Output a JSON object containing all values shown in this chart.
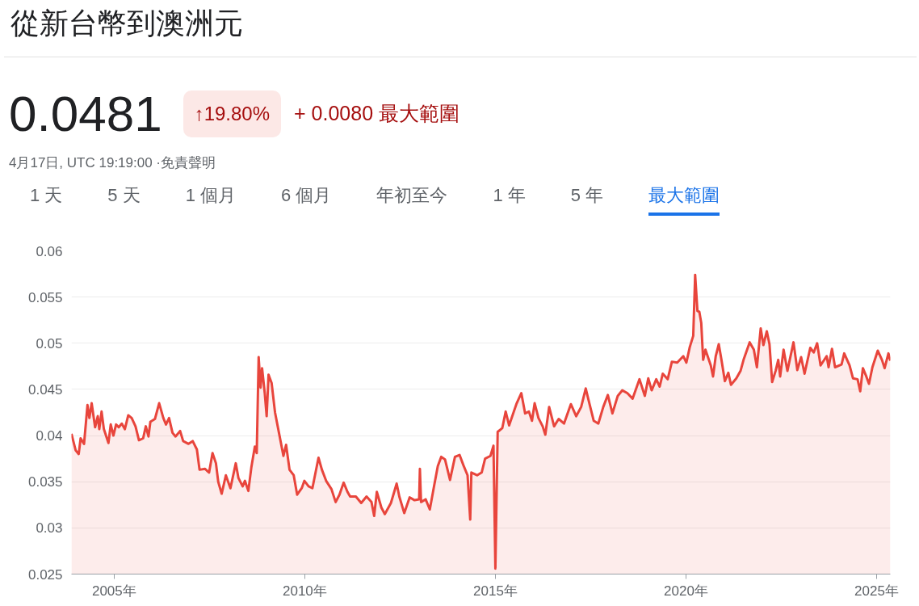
{
  "chart_data": {
    "type": "area",
    "title": "從新台幣到澳洲元",
    "annotations": [
      "0.0481",
      "↑19.80%",
      "+ 0.0080 最大範圍",
      "4月17日, UTC 19:19:00 ·免責聲明",
      "1 天",
      "5 天",
      "1 個月",
      "6 個月",
      "年初至今",
      "1 年",
      "5 年",
      "最大範圍"
    ],
    "x": [
      2003.88,
      2003.99,
      2004.07,
      2004.12,
      2004.21,
      2004.3,
      2004.35,
      2004.41,
      2004.5,
      2004.57,
      2004.61,
      2004.67,
      2004.73,
      2004.85,
      2004.91,
      2004.98,
      2005.05,
      2005.12,
      2005.2,
      2005.28,
      2005.37,
      2005.46,
      2005.56,
      2005.65,
      2005.76,
      2005.83,
      2005.9,
      2005.95,
      2006.07,
      2006.18,
      2006.29,
      2006.36,
      2006.44,
      2006.53,
      2006.61,
      2006.73,
      2006.81,
      2006.95,
      2007.06,
      2007.17,
      2007.24,
      2007.38,
      2007.49,
      2007.58,
      2007.67,
      2007.73,
      2007.82,
      2007.93,
      2008.05,
      2008.19,
      2008.26,
      2008.37,
      2008.43,
      2008.52,
      2008.6,
      2008.69,
      2008.74,
      2008.79,
      2008.84,
      2008.88,
      2008.95,
      2009.0,
      2009.05,
      2009.13,
      2009.22,
      2009.29,
      2009.44,
      2009.51,
      2009.6,
      2009.71,
      2009.8,
      2009.92,
      2009.99,
      2010.1,
      2010.2,
      2010.36,
      2010.45,
      2010.56,
      2010.7,
      2010.81,
      2010.91,
      2011.02,
      2011.12,
      2011.19,
      2011.34,
      2011.48,
      2011.62,
      2011.75,
      2011.82,
      2011.89,
      2012.01,
      2012.1,
      2012.26,
      2012.41,
      2012.48,
      2012.61,
      2012.75,
      2012.88,
      2013.0,
      2013.02,
      2013.05,
      2013.17,
      2013.28,
      2013.39,
      2013.49,
      2013.58,
      2013.68,
      2013.81,
      2013.94,
      2014.06,
      2014.16,
      2014.27,
      2014.34,
      2014.37,
      2014.52,
      2014.64,
      2014.73,
      2014.87,
      2014.95,
      2015.0,
      2015.06,
      2015.18,
      2015.27,
      2015.36,
      2015.55,
      2015.68,
      2015.78,
      2015.88,
      2015.96,
      2016.03,
      2016.13,
      2016.24,
      2016.31,
      2016.41,
      2016.54,
      2016.66,
      2016.8,
      2016.98,
      2017.12,
      2017.25,
      2017.37,
      2017.47,
      2017.58,
      2017.7,
      2017.83,
      2017.95,
      2018.07,
      2018.21,
      2018.33,
      2018.46,
      2018.6,
      2018.78,
      2018.92,
      2019.01,
      2019.1,
      2019.22,
      2019.31,
      2019.39,
      2019.52,
      2019.63,
      2019.77,
      2019.93,
      2020.01,
      2020.1,
      2020.19,
      2020.24,
      2020.3,
      2020.35,
      2020.4,
      2020.45,
      2020.51,
      2020.65,
      2020.71,
      2020.78,
      2020.86,
      2020.93,
      2021.02,
      2021.11,
      2021.18,
      2021.32,
      2021.43,
      2021.51,
      2021.67,
      2021.78,
      2021.86,
      2021.96,
      2022.03,
      2022.12,
      2022.19,
      2022.26,
      2022.35,
      2022.42,
      2022.47,
      2022.56,
      2022.66,
      2022.82,
      2022.92,
      2023.02,
      2023.11,
      2023.26,
      2023.35,
      2023.44,
      2023.53,
      2023.69,
      2023.74,
      2023.83,
      2023.91,
      2024.08,
      2024.15,
      2024.29,
      2024.38,
      2024.5,
      2024.57,
      2024.64,
      2024.73,
      2024.8,
      2024.89,
      2025.03,
      2025.14,
      2025.21,
      2025.31,
      2025.36
    ],
    "series": [
      {
        "color": "#e8453c",
        "values": [
          0.0402,
          0.0384,
          0.038,
          0.0397,
          0.0391,
          0.0433,
          0.0419,
          0.0435,
          0.0409,
          0.0421,
          0.0407,
          0.0426,
          0.0407,
          0.0392,
          0.0412,
          0.04,
          0.0412,
          0.0409,
          0.0413,
          0.0407,
          0.0422,
          0.0419,
          0.041,
          0.0395,
          0.0397,
          0.041,
          0.0399,
          0.0415,
          0.0418,
          0.0435,
          0.0419,
          0.0412,
          0.0419,
          0.0403,
          0.0399,
          0.0405,
          0.0394,
          0.0391,
          0.0394,
          0.0385,
          0.0363,
          0.0364,
          0.036,
          0.0381,
          0.037,
          0.035,
          0.0337,
          0.0357,
          0.0343,
          0.037,
          0.0354,
          0.0345,
          0.0351,
          0.034,
          0.0366,
          0.0388,
          0.0381,
          0.0485,
          0.0452,
          0.0473,
          0.0446,
          0.0421,
          0.0466,
          0.0457,
          0.0425,
          0.041,
          0.0378,
          0.039,
          0.0363,
          0.0357,
          0.0336,
          0.0343,
          0.0351,
          0.0345,
          0.0343,
          0.0376,
          0.0363,
          0.0351,
          0.0342,
          0.0328,
          0.0336,
          0.0349,
          0.0339,
          0.0334,
          0.0334,
          0.0327,
          0.0334,
          0.0328,
          0.0313,
          0.0339,
          0.0322,
          0.0315,
          0.0327,
          0.0348,
          0.0334,
          0.0316,
          0.0333,
          0.033,
          0.0331,
          0.0364,
          0.0328,
          0.0331,
          0.032,
          0.0345,
          0.0367,
          0.0377,
          0.0374,
          0.0352,
          0.0377,
          0.0379,
          0.0368,
          0.0357,
          0.0309,
          0.036,
          0.0357,
          0.036,
          0.0375,
          0.0378,
          0.0389,
          0.0256,
          0.0404,
          0.0408,
          0.0426,
          0.0411,
          0.0434,
          0.0446,
          0.0424,
          0.0426,
          0.0416,
          0.0435,
          0.0419,
          0.041,
          0.0401,
          0.0431,
          0.041,
          0.0418,
          0.0413,
          0.0434,
          0.0421,
          0.0431,
          0.0451,
          0.0434,
          0.0416,
          0.0413,
          0.0431,
          0.0444,
          0.0424,
          0.0443,
          0.0449,
          0.0446,
          0.044,
          0.0461,
          0.0443,
          0.0462,
          0.0449,
          0.0461,
          0.0453,
          0.0467,
          0.0461,
          0.048,
          0.0479,
          0.0486,
          0.0479,
          0.0496,
          0.0508,
          0.0574,
          0.0535,
          0.0534,
          0.0522,
          0.0482,
          0.0493,
          0.0476,
          0.0464,
          0.0486,
          0.0499,
          0.0482,
          0.0459,
          0.0468,
          0.0455,
          0.0462,
          0.047,
          0.0482,
          0.0501,
          0.0493,
          0.0474,
          0.0516,
          0.0498,
          0.0513,
          0.0499,
          0.0458,
          0.047,
          0.0482,
          0.0464,
          0.0493,
          0.047,
          0.0501,
          0.0471,
          0.0485,
          0.0467,
          0.0495,
          0.049,
          0.05,
          0.0476,
          0.0486,
          0.0474,
          0.0494,
          0.0474,
          0.0477,
          0.0489,
          0.0476,
          0.0462,
          0.0461,
          0.0448,
          0.0473,
          0.0464,
          0.0456,
          0.0474,
          0.0492,
          0.0482,
          0.0473,
          0.0489,
          0.0481
        ]
      }
    ],
    "xlim": [
      2003.88,
      2025.36
    ],
    "ylim": [
      0.025,
      0.06
    ],
    "xticks": [
      {
        "value": 2005,
        "label": "2005年"
      },
      {
        "value": 2010,
        "label": "2010年"
      },
      {
        "value": 2015,
        "label": "2015年"
      },
      {
        "value": 2020,
        "label": "2020年"
      },
      {
        "value": 2025,
        "label": "2025年"
      }
    ],
    "yticks": [
      0.025,
      0.03,
      0.035,
      0.04,
      0.045,
      0.05,
      0.055,
      0.06
    ],
    "grid": "y"
  }
}
